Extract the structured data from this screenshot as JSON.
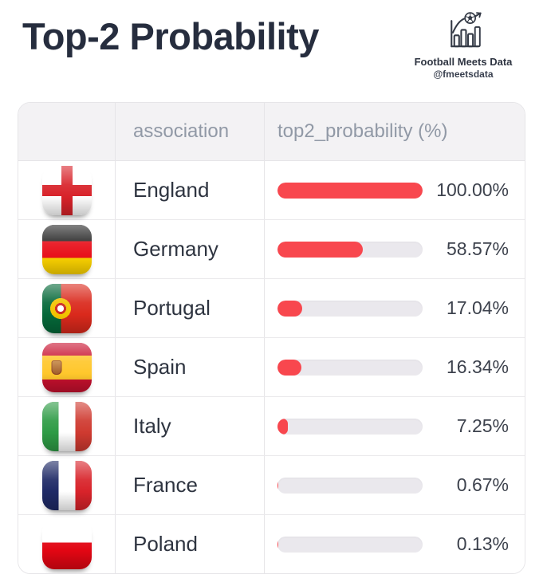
{
  "page": {
    "title": "Top-2 Probability",
    "brand": {
      "name": "Football Meets Data",
      "handle": "@fmeetsdata"
    }
  },
  "table": {
    "header": {
      "association": "association",
      "probability": "top2_probability (%)"
    },
    "rows": [
      {
        "flag": "england",
        "association": "England",
        "probability": 100.0,
        "probability_label": "100.00%"
      },
      {
        "flag": "germany",
        "association": "Germany",
        "probability": 58.57,
        "probability_label": "58.57%"
      },
      {
        "flag": "portugal",
        "association": "Portugal",
        "probability": 17.04,
        "probability_label": "17.04%"
      },
      {
        "flag": "spain",
        "association": "Spain",
        "probability": 16.34,
        "probability_label": "16.34%"
      },
      {
        "flag": "italy",
        "association": "Italy",
        "probability": 7.25,
        "probability_label": "7.25%"
      },
      {
        "flag": "france",
        "association": "France",
        "probability": 0.67,
        "probability_label": "0.67%"
      },
      {
        "flag": "poland",
        "association": "Poland",
        "probability": 0.13,
        "probability_label": "0.13%"
      }
    ]
  },
  "colors": {
    "bar_fill": "#f8474e",
    "bar_track": "#eae8ed",
    "title_text": "#262d3e",
    "header_text": "#9199a6",
    "header_bg": "#f3f2f4"
  },
  "chart_data": {
    "type": "bar",
    "orientation": "horizontal",
    "title": "Top-2 Probability",
    "xlabel": "top2_probability (%)",
    "ylabel": "association",
    "categories": [
      "England",
      "Germany",
      "Portugal",
      "Spain",
      "Italy",
      "France",
      "Poland"
    ],
    "values": [
      100.0,
      58.57,
      17.04,
      16.34,
      7.25,
      0.67,
      0.13
    ],
    "value_labels": [
      "100.00%",
      "58.57%",
      "17.04%",
      "16.34%",
      "7.25%",
      "0.67%",
      "0.13%"
    ],
    "xlim": [
      0,
      100
    ],
    "grid": false,
    "legend": false,
    "bar_color": "#f8474e",
    "track_color": "#eae8ed"
  }
}
